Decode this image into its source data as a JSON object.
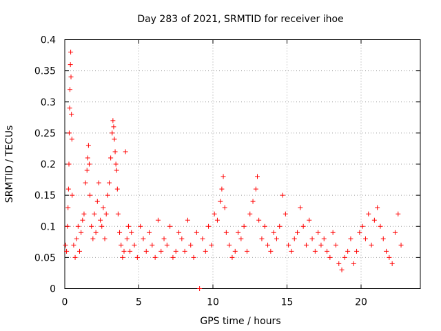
{
  "chart_data": {
    "type": "scatter",
    "title": "Day 283 of 2021, SRMTID for receiver ihoe",
    "xlabel": "GPS time / hours",
    "ylabel": "SRMTID / TECUs",
    "xlim": [
      0,
      24
    ],
    "ylim": [
      0,
      0.4
    ],
    "xticks": [
      0,
      5,
      10,
      15,
      20
    ],
    "xtick_labels": [
      "0",
      "5",
      "10",
      "15",
      "20"
    ],
    "yticks": [
      0,
      0.05,
      0.1,
      0.15,
      0.2,
      0.25,
      0.3,
      0.35,
      0.4
    ],
    "ytick_labels": [
      "0",
      "0.05",
      "0.1",
      "0.15",
      "0.2",
      "0.25",
      "0.3",
      "0.35",
      "0.4"
    ],
    "grid": true,
    "marker": "plus",
    "color": "#ff0000",
    "series": [
      {
        "name": "SRMTID",
        "x": [
          0.05,
          0.12,
          0.18,
          0.22,
          0.25,
          0.28,
          0.3,
          0.33,
          0.35,
          0.38,
          0.4,
          0.42,
          0.45,
          0.48,
          0.5,
          0.6,
          0.7,
          0.8,
          0.9,
          1.0,
          1.1,
          1.2,
          1.3,
          1.4,
          1.5,
          1.55,
          1.6,
          1.65,
          1.7,
          1.8,
          1.9,
          2.0,
          2.1,
          2.2,
          2.3,
          2.4,
          2.5,
          2.6,
          2.7,
          2.8,
          2.9,
          3.0,
          3.1,
          3.2,
          3.25,
          3.3,
          3.35,
          3.4,
          3.45,
          3.5,
          3.55,
          3.6,
          3.7,
          3.8,
          3.9,
          4.0,
          4.1,
          4.2,
          4.3,
          4.4,
          4.5,
          4.7,
          4.9,
          5.1,
          5.3,
          5.5,
          5.7,
          5.9,
          6.1,
          6.3,
          6.5,
          6.7,
          6.9,
          7.1,
          7.3,
          7.5,
          7.7,
          7.9,
          8.1,
          8.3,
          8.5,
          8.7,
          8.9,
          9.1,
          9.3,
          9.5,
          9.7,
          9.9,
          10.1,
          10.3,
          10.5,
          10.6,
          10.7,
          10.8,
          10.9,
          11.1,
          11.3,
          11.5,
          11.7,
          11.9,
          12.1,
          12.3,
          12.5,
          12.7,
          12.9,
          13.0,
          13.1,
          13.3,
          13.5,
          13.7,
          13.9,
          14.1,
          14.3,
          14.5,
          14.7,
          14.9,
          15.1,
          15.3,
          15.5,
          15.7,
          15.9,
          16.1,
          16.3,
          16.5,
          16.7,
          16.9,
          17.1,
          17.3,
          17.5,
          17.7,
          17.9,
          18.1,
          18.3,
          18.5,
          18.7,
          18.9,
          19.1,
          19.3,
          19.5,
          19.7,
          19.9,
          20.1,
          20.3,
          20.5,
          20.7,
          20.9,
          21.1,
          21.3,
          21.5,
          21.7,
          21.9,
          22.1,
          22.3,
          22.5,
          22.7
        ],
        "y": [
          0.07,
          0.06,
          0.1,
          0.13,
          0.16,
          0.2,
          0.25,
          0.29,
          0.32,
          0.36,
          0.38,
          0.34,
          0.28,
          0.24,
          0.15,
          0.07,
          0.05,
          0.08,
          0.1,
          0.06,
          0.09,
          0.11,
          0.12,
          0.17,
          0.19,
          0.21,
          0.23,
          0.2,
          0.15,
          0.1,
          0.08,
          0.12,
          0.09,
          0.14,
          0.17,
          0.11,
          0.1,
          0.13,
          0.08,
          0.12,
          0.15,
          0.17,
          0.21,
          0.25,
          0.27,
          0.26,
          0.24,
          0.22,
          0.2,
          0.19,
          0.16,
          0.12,
          0.09,
          0.07,
          0.05,
          0.06,
          0.22,
          0.08,
          0.1,
          0.06,
          0.09,
          0.07,
          0.05,
          0.1,
          0.08,
          0.06,
          0.09,
          0.07,
          0.05,
          0.11,
          0.06,
          0.08,
          0.07,
          0.1,
          0.05,
          0.06,
          0.09,
          0.08,
          0.06,
          0.11,
          0.07,
          0.05,
          0.09,
          0.0,
          0.08,
          0.06,
          0.1,
          0.07,
          0.12,
          0.11,
          0.14,
          0.16,
          0.18,
          0.13,
          0.09,
          0.07,
          0.05,
          0.06,
          0.09,
          0.08,
          0.1,
          0.06,
          0.12,
          0.14,
          0.16,
          0.18,
          0.11,
          0.08,
          0.1,
          0.07,
          0.06,
          0.09,
          0.08,
          0.1,
          0.15,
          0.12,
          0.07,
          0.06,
          0.08,
          0.09,
          0.13,
          0.1,
          0.07,
          0.11,
          0.08,
          0.06,
          0.09,
          0.07,
          0.08,
          0.06,
          0.05,
          0.09,
          0.07,
          0.04,
          0.03,
          0.05,
          0.06,
          0.08,
          0.04,
          0.06,
          0.09,
          0.1,
          0.08,
          0.12,
          0.07,
          0.11,
          0.13,
          0.1,
          0.08,
          0.06,
          0.05,
          0.04,
          0.09,
          0.12,
          0.07
        ]
      }
    ]
  }
}
